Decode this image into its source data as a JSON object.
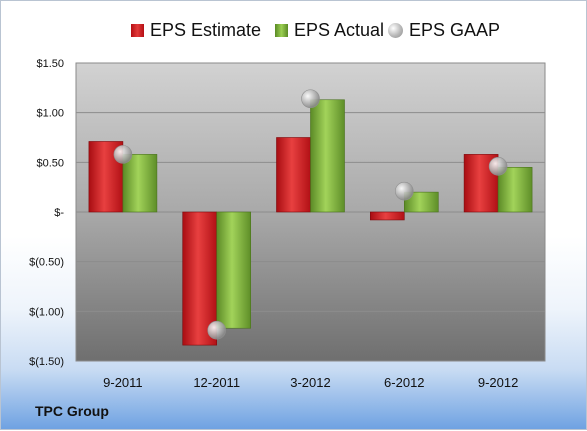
{
  "company": "TPC Group",
  "chart_data": {
    "type": "bar",
    "categories": [
      "9-2011",
      "12-2011",
      "3-2012",
      "6-2012",
      "9-2012"
    ],
    "series": [
      {
        "name": "EPS Estimate",
        "kind": "bar",
        "color": "#d42a2c",
        "values": [
          0.71,
          -1.34,
          0.75,
          -0.08,
          0.58
        ]
      },
      {
        "name": "EPS Actual",
        "kind": "bar",
        "color": "#8cc04a",
        "values": [
          0.58,
          -1.17,
          1.13,
          0.2,
          0.45
        ]
      },
      {
        "name": "EPS GAAP",
        "kind": "marker",
        "color": "#b8b8b8",
        "values": [
          0.58,
          -1.19,
          1.14,
          0.21,
          0.46
        ]
      }
    ],
    "ylim": [
      -1.5,
      1.5
    ],
    "yticks": [
      1.5,
      1.0,
      0.5,
      0,
      -0.5,
      -1.0,
      -1.5
    ],
    "ytick_labels": [
      "$1.50",
      "$1.00",
      "$0.50",
      "$-",
      "$(0.50)",
      "$(1.00)",
      "$(1.50)"
    ],
    "grid": true,
    "legend_position": "top",
    "title": "",
    "xlabel": "",
    "ylabel": ""
  }
}
